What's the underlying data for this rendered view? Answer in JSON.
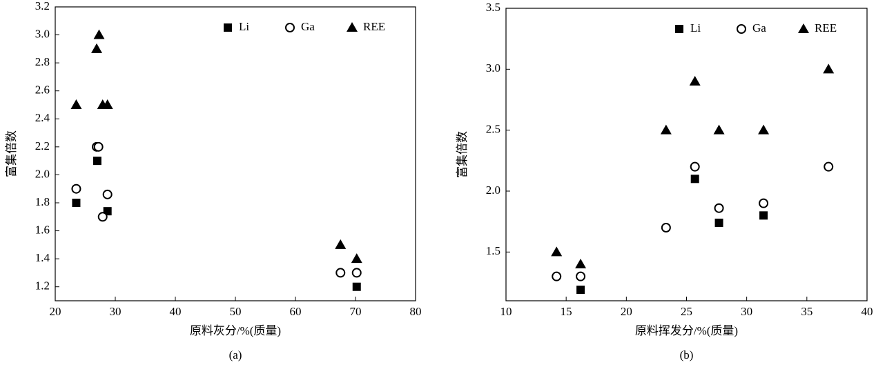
{
  "chart_data": [
    {
      "type": "scatter",
      "caption": "(a)",
      "xlabel": "原料灰分/%(质量)",
      "ylabel": "富集倍数",
      "xlim": [
        20,
        80
      ],
      "xticks": [
        20,
        30,
        40,
        50,
        60,
        70,
        80
      ],
      "ylim": [
        1.1,
        3.2
      ],
      "yticks": [
        1.2,
        1.4,
        1.6,
        1.8,
        {
          "value": 2.0,
          "label": "2.0"
        },
        2.2,
        2.4,
        2.6,
        2.8,
        {
          "value": 3.0,
          "label": "3.0"
        },
        3.2
      ],
      "legend": "upper right",
      "series": [
        {
          "name": "Li",
          "color": "#000000",
          "marker": "square",
          "x": [
            23.5,
            27,
            28.7,
            70.2
          ],
          "values": [
            1.8,
            2.1,
            1.74,
            1.2
          ]
        },
        {
          "name": "Ga",
          "color": "#000000",
          "marker": "circle",
          "x": [
            23.5,
            26.9,
            27.2,
            27.9,
            28.7,
            67.5,
            70.2
          ],
          "values": [
            1.9,
            2.2,
            2.2,
            1.7,
            1.86,
            1.3,
            1.3
          ]
        },
        {
          "name": "REE",
          "color": "#000000",
          "marker": "triangle",
          "x": [
            23.5,
            26.9,
            27.3,
            27.9,
            28.7,
            67.5,
            70.2
          ],
          "values": [
            2.5,
            2.9,
            3.0,
            2.5,
            2.5,
            1.5,
            1.4
          ]
        }
      ]
    },
    {
      "type": "scatter",
      "caption": "(b)",
      "xlabel": "原料挥发分/%(质量)",
      "ylabel": "富集倍数",
      "xlim": [
        10,
        40
      ],
      "xticks": [
        10,
        15,
        20,
        25,
        30,
        35,
        40
      ],
      "ylim": [
        1.1,
        3.5
      ],
      "yticks": [
        1.5,
        {
          "value": 2.0,
          "label": "2.0"
        },
        2.5,
        {
          "value": 3.0,
          "label": "3.0"
        },
        3.5
      ],
      "legend": "upper right",
      "series": [
        {
          "name": "Li",
          "color": "#000000",
          "marker": "square",
          "x": [
            16.2,
            25.7,
            27.7,
            31.4
          ],
          "values": [
            1.19,
            2.1,
            1.74,
            1.8
          ]
        },
        {
          "name": "Ga",
          "color": "#000000",
          "marker": "circle",
          "x": [
            14.2,
            16.2,
            23.3,
            25.7,
            27.7,
            31.4,
            36.8
          ],
          "values": [
            1.3,
            1.3,
            1.7,
            2.2,
            1.86,
            1.9,
            2.2
          ]
        },
        {
          "name": "REE",
          "color": "#000000",
          "marker": "triangle",
          "x": [
            14.2,
            16.2,
            23.3,
            25.7,
            27.7,
            31.4,
            36.8
          ],
          "values": [
            1.5,
            1.4,
            2.5,
            2.9,
            2.5,
            2.5,
            3.0
          ]
        }
      ]
    }
  ]
}
